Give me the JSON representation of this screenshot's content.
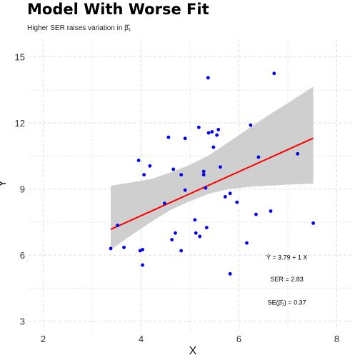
{
  "chart_data": {
    "type": "scatter",
    "title": "Model With Worse Fit",
    "subtitle": "Higher SER raises variation in β̂₁",
    "xlabel": "X",
    "ylabel": "Y",
    "xlim": [
      1.7,
      8.3
    ],
    "ylim": [
      2.6,
      15.8
    ],
    "xticks": [
      2,
      4,
      6,
      8
    ],
    "yticks": [
      3,
      6,
      9,
      12,
      15
    ],
    "x_tick_labels": [
      "2",
      "4",
      "6",
      "8"
    ],
    "y_tick_labels": [
      "3",
      "6",
      "9",
      "12",
      "15"
    ],
    "grid": true,
    "point_color": "#0000ee",
    "line_color": "#ff0000",
    "band_color": "#cccccc",
    "points": [
      {
        "x": 3.38,
        "y": 6.3
      },
      {
        "x": 3.52,
        "y": 7.35
      },
      {
        "x": 3.65,
        "y": 6.35
      },
      {
        "x": 3.95,
        "y": 10.3
      },
      {
        "x": 3.98,
        "y": 6.2
      },
      {
        "x": 4.03,
        "y": 6.25
      },
      {
        "x": 4.03,
        "y": 5.55
      },
      {
        "x": 4.06,
        "y": 9.65
      },
      {
        "x": 4.18,
        "y": 10.05
      },
      {
        "x": 4.48,
        "y": 8.35
      },
      {
        "x": 4.56,
        "y": 11.35
      },
      {
        "x": 4.63,
        "y": 6.7
      },
      {
        "x": 4.66,
        "y": 9.9
      },
      {
        "x": 4.7,
        "y": 7.0
      },
      {
        "x": 4.82,
        "y": 6.2
      },
      {
        "x": 4.82,
        "y": 9.65
      },
      {
        "x": 4.9,
        "y": 11.3
      },
      {
        "x": 4.9,
        "y": 8.95
      },
      {
        "x": 5.1,
        "y": 7.6
      },
      {
        "x": 5.12,
        "y": 7.0
      },
      {
        "x": 5.18,
        "y": 11.8
      },
      {
        "x": 5.2,
        "y": 6.85
      },
      {
        "x": 5.28,
        "y": 9.8
      },
      {
        "x": 5.28,
        "y": 9.65
      },
      {
        "x": 5.32,
        "y": 9.05
      },
      {
        "x": 5.34,
        "y": 7.25
      },
      {
        "x": 5.37,
        "y": 14.05
      },
      {
        "x": 5.38,
        "y": 11.55
      },
      {
        "x": 5.45,
        "y": 11.6
      },
      {
        "x": 5.48,
        "y": 10.9
      },
      {
        "x": 5.55,
        "y": 11.45
      },
      {
        "x": 5.58,
        "y": 11.7
      },
      {
        "x": 5.62,
        "y": 10.0
      },
      {
        "x": 5.72,
        "y": 8.65
      },
      {
        "x": 5.82,
        "y": 8.8
      },
      {
        "x": 5.82,
        "y": 5.15
      },
      {
        "x": 5.96,
        "y": 8.4
      },
      {
        "x": 6.16,
        "y": 6.55
      },
      {
        "x": 6.24,
        "y": 11.9
      },
      {
        "x": 6.35,
        "y": 7.85
      },
      {
        "x": 6.4,
        "y": 10.45
      },
      {
        "x": 6.65,
        "y": 8.0
      },
      {
        "x": 6.72,
        "y": 14.25
      },
      {
        "x": 7.2,
        "y": 10.6
      },
      {
        "x": 7.52,
        "y": 7.45
      }
    ],
    "regression_line": {
      "intercept": 3.79,
      "slope": 1.0,
      "x_range": [
        3.38,
        7.52
      ]
    },
    "confidence_band": [
      {
        "x": 3.38,
        "lo": 6.25,
        "hi": 9.15
      },
      {
        "x": 3.8,
        "lo": 6.9,
        "hi": 9.3
      },
      {
        "x": 4.2,
        "lo": 7.5,
        "hi": 9.45
      },
      {
        "x": 4.6,
        "lo": 8.05,
        "hi": 9.75
      },
      {
        "x": 5.0,
        "lo": 8.45,
        "hi": 10.1
      },
      {
        "x": 5.4,
        "lo": 8.8,
        "hi": 10.55
      },
      {
        "x": 5.8,
        "lo": 9.0,
        "hi": 11.15
      },
      {
        "x": 6.2,
        "lo": 9.1,
        "hi": 11.75
      },
      {
        "x": 6.6,
        "lo": 9.15,
        "hi": 12.35
      },
      {
        "x": 7.0,
        "lo": 9.2,
        "hi": 12.9
      },
      {
        "x": 7.52,
        "lo": 9.25,
        "hi": 13.65
      }
    ],
    "annotations": [
      {
        "text": "Ŷ = 3.79 + 1 X",
        "x": 6.98,
        "y": 5.9
      },
      {
        "text": "SER = 2.83",
        "x": 6.98,
        "y": 4.9
      },
      {
        "text": "SE(β̂₁) = 0.37",
        "x": 6.98,
        "y": 3.85
      }
    ]
  }
}
